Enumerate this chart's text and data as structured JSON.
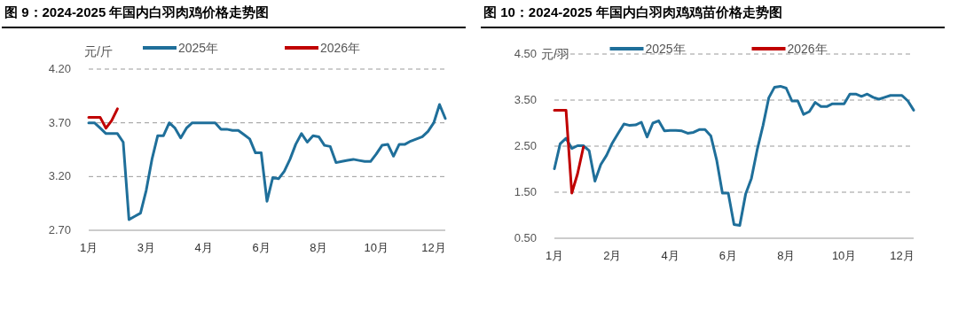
{
  "chart_data": [
    {
      "type": "line",
      "title": "图 9：2024-2025 年国内白羽肉鸡价格走势图",
      "ylabel": "元/斤",
      "legend": "top",
      "grid": "y",
      "categories": [
        "1月",
        null,
        null,
        null,
        null,
        null,
        null,
        null,
        null,
        null,
        "3月",
        null,
        null,
        null,
        null,
        null,
        null,
        null,
        null,
        null,
        "4月",
        null,
        null,
        null,
        null,
        null,
        null,
        null,
        null,
        null,
        "6月",
        null,
        null,
        null,
        null,
        null,
        null,
        null,
        null,
        null,
        "8月",
        null,
        null,
        null,
        null,
        null,
        null,
        null,
        null,
        null,
        "10月",
        null,
        null,
        null,
        null,
        null,
        null,
        null,
        null,
        null,
        "12月",
        null,
        null
      ],
      "ylim": [
        2.7,
        4.2
      ],
      "yticks": [
        {
          "value": 2.7,
          "label": "2.70"
        },
        {
          "value": 3.2,
          "label": "3.20"
        },
        {
          "value": 3.7,
          "label": "3.70"
        },
        {
          "value": 4.2,
          "label": "4.20"
        }
      ],
      "series": [
        {
          "name": "2025年",
          "color": "#1f6f9a",
          "values": [
            3.7,
            3.7,
            3.65,
            3.6,
            3.6,
            3.6,
            3.52,
            2.8,
            2.83,
            2.86,
            3.07,
            3.36,
            3.58,
            3.58,
            3.7,
            3.65,
            3.56,
            3.65,
            3.7,
            3.7,
            3.7,
            3.7,
            3.7,
            3.64,
            3.64,
            3.63,
            3.63,
            3.59,
            3.55,
            3.42,
            3.42,
            2.97,
            3.19,
            3.18,
            3.25,
            3.36,
            3.5,
            3.6,
            3.52,
            3.58,
            3.57,
            3.49,
            3.48,
            3.33,
            3.34,
            3.35,
            3.36,
            3.35,
            3.34,
            3.34,
            3.41,
            3.49,
            3.5,
            3.39,
            3.5,
            3.5,
            3.53,
            3.55,
            3.57,
            3.62,
            3.7,
            3.87,
            3.74
          ]
        },
        {
          "name": "2026年",
          "color": "#c00000",
          "values": [
            3.75,
            3.75,
            3.75,
            3.65,
            3.72,
            3.83,
            null,
            null,
            null,
            null,
            null,
            null,
            null,
            null,
            null,
            null,
            null,
            null,
            null,
            null,
            null,
            null,
            null,
            null,
            null,
            null,
            null,
            null,
            null,
            null,
            null,
            null,
            null,
            null,
            null,
            null,
            null,
            null,
            null,
            null,
            null,
            null,
            null,
            null,
            null,
            null,
            null,
            null,
            null,
            null,
            null,
            null,
            null,
            null,
            null,
            null,
            null,
            null,
            null,
            null,
            null,
            null,
            null
          ]
        }
      ]
    },
    {
      "type": "line",
      "title": "图 10：2024-2025 年国内白羽肉鸡鸡苗价格走势图",
      "ylabel": "元/羽",
      "legend": "top",
      "grid": "y",
      "categories": [
        "1月",
        null,
        null,
        null,
        null,
        null,
        null,
        null,
        null,
        null,
        "2月",
        null,
        null,
        null,
        null,
        null,
        null,
        null,
        null,
        null,
        "4月",
        null,
        null,
        null,
        null,
        null,
        null,
        null,
        null,
        null,
        "6月",
        null,
        null,
        null,
        null,
        null,
        null,
        null,
        null,
        null,
        "8月",
        null,
        null,
        null,
        null,
        null,
        null,
        null,
        null,
        null,
        "10月",
        null,
        null,
        null,
        null,
        null,
        null,
        null,
        null,
        null,
        "12月",
        null,
        null
      ],
      "ylim": [
        0.5,
        4.5
      ],
      "yticks": [
        {
          "value": 0.5,
          "label": "0.50"
        },
        {
          "value": 1.5,
          "label": "1.50"
        },
        {
          "value": 2.5,
          "label": "2.50"
        },
        {
          "value": 3.5,
          "label": "3.50"
        },
        {
          "value": 4.5,
          "label": "4.50"
        }
      ],
      "series": [
        {
          "name": "2025年",
          "color": "#1f6f9a",
          "values": [
            2.01,
            2.55,
            2.67,
            2.45,
            2.51,
            2.51,
            2.4,
            1.74,
            2.1,
            2.3,
            2.57,
            2.78,
            2.98,
            2.95,
            2.96,
            3.02,
            2.7,
            3.0,
            3.05,
            2.83,
            2.84,
            2.84,
            2.83,
            2.78,
            2.8,
            2.86,
            2.86,
            2.72,
            2.2,
            1.48,
            1.48,
            0.8,
            0.78,
            1.46,
            1.8,
            2.42,
            2.95,
            3.55,
            3.78,
            3.8,
            3.76,
            3.48,
            3.48,
            3.19,
            3.25,
            3.45,
            3.36,
            3.36,
            3.42,
            3.42,
            3.42,
            3.63,
            3.63,
            3.58,
            3.63,
            3.56,
            3.52,
            3.56,
            3.6,
            3.6,
            3.6,
            3.48,
            3.28
          ]
        },
        {
          "name": "2026年",
          "color": "#c00000",
          "values": [
            3.28,
            3.28,
            3.28,
            1.48,
            1.9,
            2.48,
            null,
            null,
            null,
            null,
            null,
            null,
            null,
            null,
            null,
            null,
            null,
            null,
            null,
            null,
            null,
            null,
            null,
            null,
            null,
            null,
            null,
            null,
            null,
            null,
            null,
            null,
            null,
            null,
            null,
            null,
            null,
            null,
            null,
            null,
            null,
            null,
            null,
            null,
            null,
            null,
            null,
            null,
            null,
            null,
            null,
            null,
            null,
            null,
            null,
            null,
            null,
            null,
            null,
            null,
            null,
            null,
            null
          ]
        }
      ]
    }
  ]
}
